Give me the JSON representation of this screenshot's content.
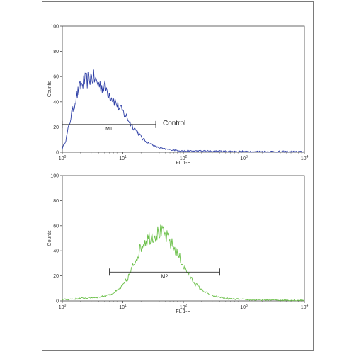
{
  "chart_data": [
    {
      "type": "line",
      "x_scale": "log",
      "xlim": [
        1,
        10000
      ],
      "ylim": [
        0,
        100
      ],
      "xlabel": "FL 1-H",
      "ylabel": "Counts",
      "x_ticks": [
        {
          "base": "10",
          "exp": "0"
        },
        {
          "base": "10",
          "exp": "1"
        },
        {
          "base": "10",
          "exp": "2"
        },
        {
          "base": "10",
          "exp": "3"
        },
        {
          "base": "10",
          "exp": "4"
        }
      ],
      "y_ticks": [
        "0",
        "20",
        "40",
        "60",
        "80",
        "100"
      ],
      "color": "#2e3fa6",
      "series": [
        {
          "x": [
            1,
            1.15,
            1.3,
            1.5,
            1.7,
            2.0,
            2.3,
            2.6,
            3.0,
            3.4,
            3.8,
            4.3,
            5.0,
            5.7,
            6.5,
            7.5,
            8.5,
            10,
            11.5,
            13,
            15,
            18,
            21,
            25,
            30,
            35,
            40,
            50,
            60,
            80,
            100,
            150,
            200,
            300,
            500,
            1000,
            2000,
            5000,
            10000
          ],
          "y": [
            3,
            10,
            22,
            35,
            44,
            52,
            56,
            57,
            60,
            58,
            55,
            53,
            52,
            48,
            44,
            40,
            36,
            32,
            28,
            24,
            20,
            15,
            11,
            8,
            6,
            4.5,
            3.5,
            2.5,
            2,
            1.5,
            1,
            1,
            1,
            0.8,
            0.8,
            0.6,
            0.5,
            0.5,
            0.3
          ]
        }
      ],
      "gate": {
        "label": "M1",
        "x_start": 1,
        "x_end": 35,
        "y": 22
      },
      "annotation": "Control"
    },
    {
      "type": "line",
      "x_scale": "log",
      "xlim": [
        1,
        10000
      ],
      "ylim": [
        0,
        100
      ],
      "xlabel": "FL 1-H",
      "ylabel": "Counts",
      "x_ticks": [
        {
          "base": "10",
          "exp": "0"
        },
        {
          "base": "10",
          "exp": "1"
        },
        {
          "base": "10",
          "exp": "2"
        },
        {
          "base": "10",
          "exp": "3"
        },
        {
          "base": "10",
          "exp": "4"
        }
      ],
      "y_ticks": [
        "0",
        "20",
        "40",
        "60",
        "80",
        "100"
      ],
      "color": "#6cc04a",
      "series": [
        {
          "x": [
            1,
            1.5,
            2,
            3,
            4,
            5,
            6.5,
            8,
            10,
            12,
            14,
            16,
            18,
            20,
            23,
            26,
            30,
            35,
            40,
            45,
            50,
            55,
            60,
            70,
            80,
            90,
            100,
            120,
            140,
            170,
            200,
            250,
            300,
            400,
            500,
            700,
            1000,
            2000,
            5000,
            10000
          ],
          "y": [
            1,
            1.5,
            2,
            2.5,
            3,
            4,
            5.5,
            8,
            12,
            18,
            25,
            32,
            38,
            43,
            48,
            50,
            52,
            53,
            55,
            54,
            52,
            50,
            47,
            43,
            38,
            33,
            28,
            22,
            17,
            12,
            9,
            6,
            4,
            3,
            2,
            1.5,
            1,
            0.8,
            0.6,
            0.5
          ]
        }
      ],
      "gate": {
        "label": "M2",
        "x_start": 6,
        "x_end": 400,
        "y": 23
      }
    }
  ]
}
